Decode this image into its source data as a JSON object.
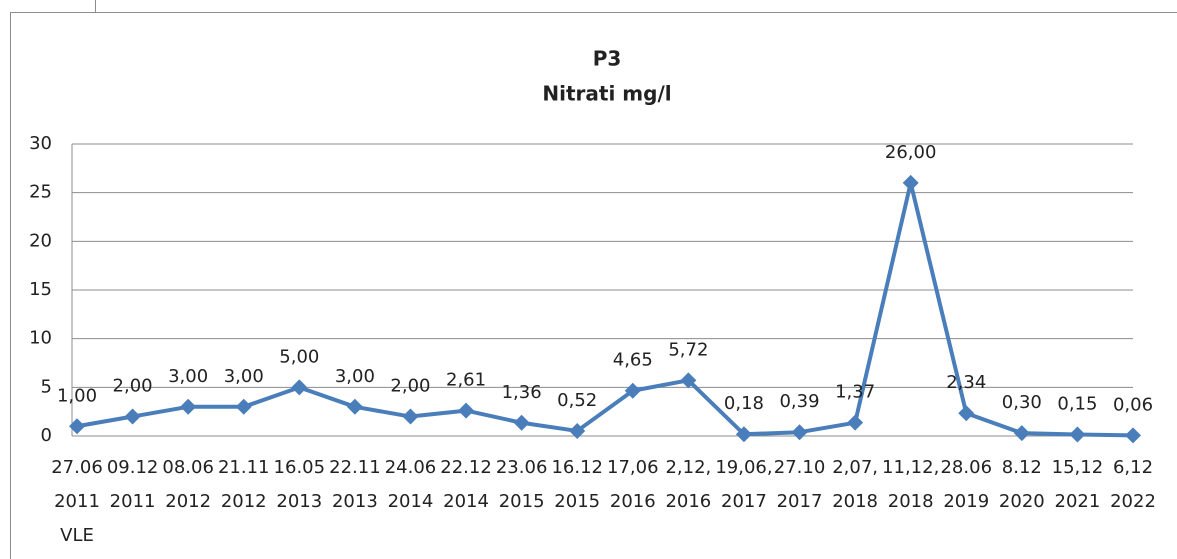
{
  "chart_data": {
    "type": "line",
    "title": "P3",
    "subtitle": "Nitrati mg/l",
    "categories": [
      "27.06\n2011\nVLE",
      "09.12\n2011",
      "08.06\n2012",
      "21.11\n2012",
      "16.05\n2013",
      "22.11\n2013",
      "24.06\n2014",
      "22.12\n2014",
      "23.06\n2015",
      "16.12\n2015",
      "17,06\n2016",
      "2,12,\n2016",
      "19,06,\n2017",
      "27.10\n2017",
      "2,07,\n2018",
      "11,12,\n2018",
      "28.06\n2019",
      "8.12\n2020",
      "15,12\n2021",
      "6,12\n2022"
    ],
    "series": [
      {
        "name": "Nitrati mg/l",
        "color": "#4a7ebb",
        "values": [
          1.0,
          2.0,
          3.0,
          3.0,
          5.0,
          3.0,
          2.0,
          2.61,
          1.36,
          0.52,
          4.65,
          5.72,
          0.18,
          0.39,
          1.37,
          26.0,
          2.34,
          0.3,
          0.15,
          0.06
        ],
        "value_labels": [
          "1,00",
          "2,00",
          "3,00",
          "3,00",
          "5,00",
          "3,00",
          "2,00",
          "2,61",
          "1,36",
          "0,52",
          "4,65",
          "5,72",
          "0,18",
          "0,39",
          "1,37",
          "26,00",
          "2,34",
          "0,30",
          "0,15",
          "0,06"
        ]
      }
    ],
    "ylim": [
      0,
      30
    ],
    "yticks": [
      0,
      5,
      10,
      15,
      20,
      25,
      30
    ],
    "grid": true
  }
}
